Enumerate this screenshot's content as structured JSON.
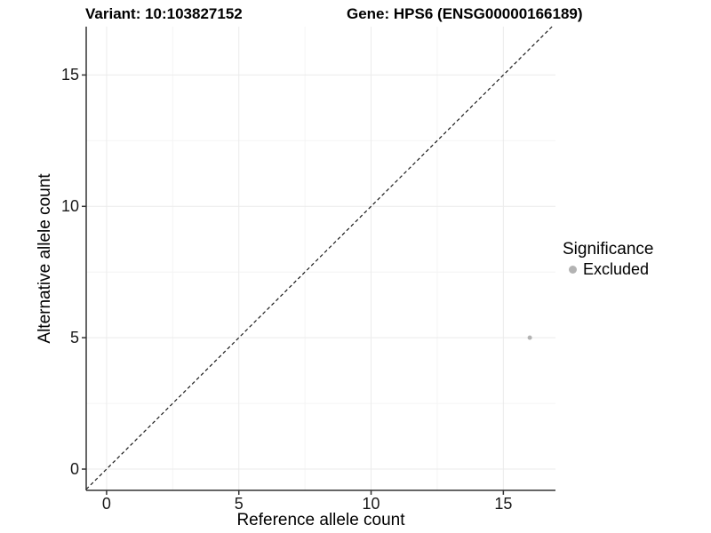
{
  "chart_data": {
    "type": "scatter",
    "title_left": "Variant: 10:103827152",
    "title_right": "Gene: HPS6 (ENSG00000166189)",
    "xlabel": "Reference allele count",
    "ylabel": "Alternative allele count",
    "xlim": [
      -0.77,
      16.97
    ],
    "ylim": [
      -0.81,
      16.84
    ],
    "x_ticks": [
      0,
      5,
      10,
      15
    ],
    "y_ticks": [
      0,
      5,
      10,
      15
    ],
    "x_minor_ticks": [
      2.5,
      7.5,
      12.5
    ],
    "y_minor_ticks": [
      2.5,
      7.5,
      12.5
    ],
    "grid": true,
    "identity_line": {
      "shown": true,
      "style": "dashed",
      "equation": "y = x"
    },
    "points": [
      {
        "x": 16,
        "y": 5,
        "series": "Excluded"
      }
    ],
    "legend": {
      "title": "Significance",
      "position": "right",
      "items": [
        {
          "label": "Excluded",
          "color": "#b3b3b3",
          "marker": "circle"
        }
      ]
    },
    "colors": {
      "background": "#ffffff",
      "grid_major": "#ebebeb",
      "grid_minor": "#f4f4f4",
      "axis_line": "#333333",
      "tick_mark": "#333333",
      "identity_line": "#1a1a1a",
      "point": "#b3b3b3",
      "text": "#000000"
    }
  }
}
